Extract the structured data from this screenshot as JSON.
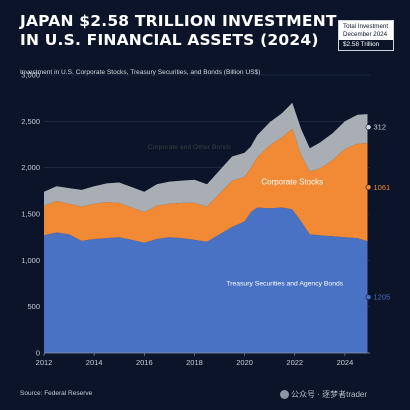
{
  "header": {
    "title_line1": "JAPAN $2.58 TRILLION INVESTMENT",
    "title_line2": "IN U.S. FINANCIAL ASSETS (2024)"
  },
  "total_box": {
    "label_line1": "Total Investment",
    "label_line2": "December 2024",
    "value": "$2.58 Trillion"
  },
  "footer": {
    "source": "Source: Federal Reserve",
    "watermark": "公众号 · 逐梦者trader"
  },
  "colors": {
    "background": "#0b1428",
    "treasury": "#4a72c4",
    "stocks": "#f28a35",
    "corporate": "#a9aeb5",
    "grid": "#2a3550",
    "axis_text": "#c9ced8"
  },
  "chart_data": {
    "type": "area",
    "stacked": true,
    "title": "Investment in U.S. Corporate Stocks, Treasury Securities, and Bonds (Billion US$)",
    "xlabel": "",
    "ylabel": "",
    "x_ticks": [
      "2012",
      "2014",
      "2016",
      "2018",
      "2020",
      "2022",
      "2024"
    ],
    "y_ticks": [
      "0",
      "500",
      "1,000",
      "1,500",
      "2,000",
      "2,500",
      "3,000"
    ],
    "xlim": [
      2012,
      2025
    ],
    "ylim": [
      0,
      3000
    ],
    "grid": true,
    "x": [
      2012.0,
      2012.5,
      2013.0,
      2013.5,
      2014.0,
      2014.5,
      2015.0,
      2015.5,
      2016.0,
      2016.5,
      2017.0,
      2017.5,
      2018.0,
      2018.5,
      2019.0,
      2019.5,
      2020.0,
      2020.25,
      2020.5,
      2021.0,
      2021.5,
      2021.9,
      2022.25,
      2022.6,
      2023.0,
      2023.5,
      2024.0,
      2024.5,
      2024.9
    ],
    "series": [
      {
        "name": "Treasury Securities and Agency Bonds",
        "values": [
          1270,
          1300,
          1280,
          1210,
          1230,
          1240,
          1250,
          1220,
          1190,
          1230,
          1250,
          1240,
          1220,
          1200,
          1280,
          1360,
          1420,
          1520,
          1570,
          1560,
          1570,
          1550,
          1420,
          1280,
          1270,
          1260,
          1250,
          1240,
          1205
        ]
      },
      {
        "name": "Corporate Stocks",
        "values": [
          320,
          340,
          330,
          370,
          380,
          390,
          370,
          350,
          330,
          360,
          360,
          380,
          400,
          380,
          440,
          500,
          480,
          480,
          540,
          680,
          760,
          870,
          720,
          680,
          720,
          820,
          950,
          1020,
          1061
        ]
      },
      {
        "name": "Corporate and Other Bonds",
        "values": [
          150,
          160,
          170,
          180,
          190,
          200,
          220,
          220,
          220,
          230,
          240,
          240,
          250,
          240,
          250,
          260,
          260,
          230,
          240,
          250,
          260,
          280,
          280,
          250,
          280,
          290,
          300,
          310,
          312
        ]
      }
    ],
    "end_labels": [
      "1205",
      "1061",
      "312"
    ],
    "series_labels": [
      {
        "text": "Corporate and Other Bonds",
        "x": 2017.8,
        "y": 2200
      },
      {
        "text": "Corporate Stocks",
        "x": 2021.9,
        "y": 1820
      },
      {
        "text": "Treasury Securities and Agency Bonds",
        "x": 2021.6,
        "y": 730
      }
    ]
  }
}
